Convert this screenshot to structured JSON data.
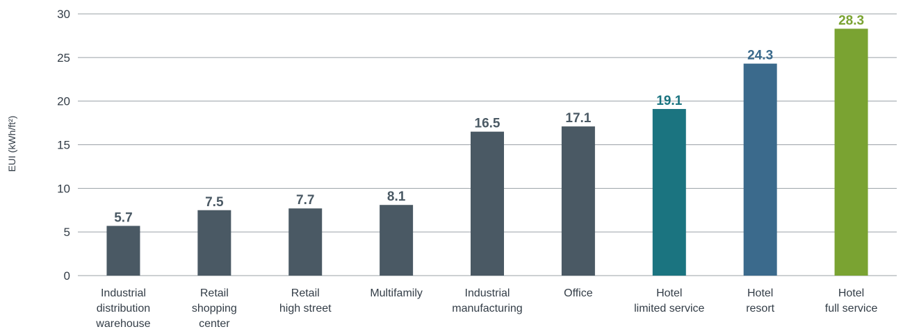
{
  "chart_data": {
    "type": "bar",
    "ylabel": "EUI (kWh/ft²)",
    "ylim": [
      0,
      30
    ],
    "yticks": [
      0,
      5,
      10,
      15,
      20,
      25,
      30
    ],
    "grid": true,
    "categories": [
      [
        "Industrial",
        "distribution",
        "warehouse"
      ],
      [
        "Retail",
        "shopping",
        "center"
      ],
      [
        "Retail",
        "high street"
      ],
      [
        "Multifamily"
      ],
      [
        "Industrial",
        "manufacturing"
      ],
      [
        "Office"
      ],
      [
        "Hotel",
        "limited service"
      ],
      [
        "Hotel",
        "resort"
      ],
      [
        "Hotel",
        "full service"
      ]
    ],
    "values": [
      5.7,
      7.5,
      7.7,
      8.1,
      16.5,
      17.1,
      19.1,
      24.3,
      28.3
    ],
    "value_labels": [
      "5.7",
      "7.5",
      "7.7",
      "8.1",
      "16.5",
      "17.1",
      "19.1",
      "24.3",
      "28.3"
    ],
    "bar_colors": [
      "#4a5964",
      "#4a5964",
      "#4a5964",
      "#4a5964",
      "#4a5964",
      "#4a5964",
      "#1b7480",
      "#3b6a8c",
      "#7aa332"
    ],
    "label_colors": [
      "#4a5964",
      "#4a5964",
      "#4a5964",
      "#4a5964",
      "#4a5964",
      "#4a5964",
      "#1b7480",
      "#3b6a8c",
      "#7aa332"
    ],
    "gridline_color": "#9aa0a6",
    "text_color": "#333d47"
  }
}
